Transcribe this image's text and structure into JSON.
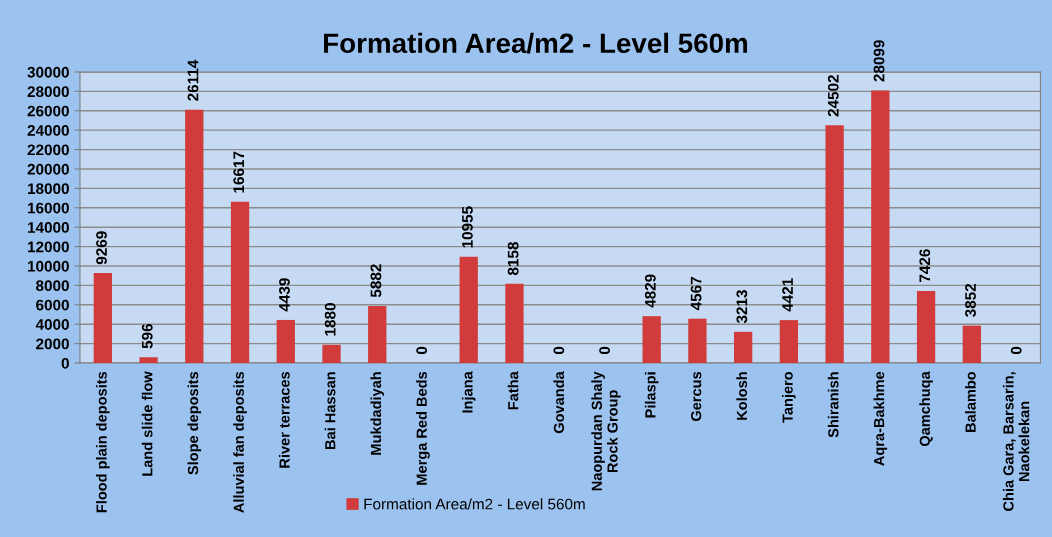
{
  "chart_data": {
    "type": "bar",
    "title": "Formation Area/m2 - Level 560m",
    "categories": [
      "Flood plain deposits",
      "Land slide flow",
      "Slope deposits",
      "Alluvial fan deposits",
      "River terraces",
      "Bai Hassan",
      "Mukdadiyah",
      "Merga Red Beds",
      "Injana",
      "Fatha",
      "Govanda",
      "Naopurdan Shaly\nRock Group",
      "Pilaspi",
      "Gercus",
      "Kolosh",
      "Tanjero",
      "Shiranish",
      "Aqra-Bakhme",
      "Qamchuqa",
      "Balambo",
      "Chia Gara, Barsarin,\nNaokelekan"
    ],
    "series": [
      {
        "name": "Formation Area/m2 - Level 560m",
        "color": "#d13b3b",
        "values": [
          9269,
          596,
          26114,
          16617,
          4439,
          1880,
          5882,
          0,
          10955,
          8158,
          0,
          0,
          4829,
          4567,
          3213,
          4421,
          24502,
          28099,
          7426,
          3852,
          0
        ]
      }
    ],
    "ylim": [
      0,
      30000
    ],
    "yticks": [
      0,
      2000,
      4000,
      6000,
      8000,
      10000,
      12000,
      14000,
      16000,
      18000,
      20000,
      22000,
      24000,
      26000,
      28000,
      30000
    ],
    "grid": "y",
    "legend": "bottom",
    "data_labels": true
  }
}
